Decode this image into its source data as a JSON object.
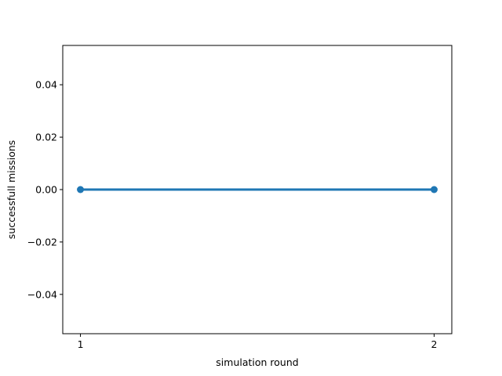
{
  "chart_data": {
    "type": "line",
    "title": "",
    "xlabel": "simulation round",
    "ylabel": "successfull missions",
    "x": [
      1,
      2
    ],
    "series": [
      {
        "values": [
          0.0,
          0.0
        ],
        "color": "#1f77b4",
        "markers": true
      }
    ],
    "xlim": [
      0.95,
      2.05
    ],
    "ylim": [
      -0.055,
      0.055
    ],
    "xticks": [
      1,
      2
    ],
    "xtick_labels": [
      "1",
      "2"
    ],
    "yticks": [
      -0.04,
      -0.02,
      0.0,
      0.02,
      0.04
    ],
    "ytick_labels": [
      "−0.04",
      "−0.02",
      "0.00",
      "0.02",
      "0.04"
    ],
    "grid": false,
    "legend": "none"
  }
}
